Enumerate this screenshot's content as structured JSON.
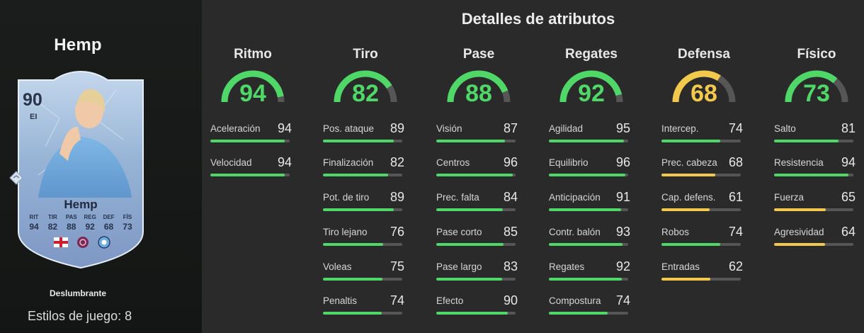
{
  "player": {
    "name": "Hemp",
    "card": {
      "rating": "90",
      "position": "EI",
      "name": "Hemp",
      "stats": [
        {
          "label": "RIT",
          "value": "94"
        },
        {
          "label": "TIR",
          "value": "82"
        },
        {
          "label": "PAS",
          "value": "88"
        },
        {
          "label": "REG",
          "value": "92"
        },
        {
          "label": "DEF",
          "value": "68"
        },
        {
          "label": "FÍS",
          "value": "73"
        }
      ],
      "badges": [
        "england-flag-icon",
        "league-badge-icon",
        "club-crest-icon"
      ]
    },
    "playstyle": "Deslumbrante",
    "playstyles_text": "Estilos de juego: 8"
  },
  "heading": "Detalles de atributos",
  "colors": {
    "green": "#4fd868",
    "yellow": "#f2c94c",
    "track": "#565656"
  },
  "categories": [
    {
      "title": "Ritmo",
      "value": 94,
      "attributes": [
        {
          "name": "Aceleración",
          "value": 94
        },
        {
          "name": "Velocidad",
          "value": 94
        }
      ]
    },
    {
      "title": "Tiro",
      "value": 82,
      "attributes": [
        {
          "name": "Pos. ataque",
          "value": 89
        },
        {
          "name": "Finalización",
          "value": 82
        },
        {
          "name": "Pot. de tiro",
          "value": 89
        },
        {
          "name": "Tiro lejano",
          "value": 76
        },
        {
          "name": "Voleas",
          "value": 75
        },
        {
          "name": "Penaltis",
          "value": 74
        }
      ]
    },
    {
      "title": "Pase",
      "value": 88,
      "attributes": [
        {
          "name": "Visión",
          "value": 87
        },
        {
          "name": "Centros",
          "value": 96
        },
        {
          "name": "Prec. falta",
          "value": 84
        },
        {
          "name": "Pase corto",
          "value": 85
        },
        {
          "name": "Pase largo",
          "value": 83
        },
        {
          "name": "Efecto",
          "value": 90
        }
      ]
    },
    {
      "title": "Regates",
      "value": 92,
      "attributes": [
        {
          "name": "Agilidad",
          "value": 95
        },
        {
          "name": "Equilibrio",
          "value": 96
        },
        {
          "name": "Anticipación",
          "value": 91
        },
        {
          "name": "Contr. balón",
          "value": 93
        },
        {
          "name": "Regates",
          "value": 92
        },
        {
          "name": "Compostura",
          "value": 74
        }
      ]
    },
    {
      "title": "Defensa",
      "value": 68,
      "attributes": [
        {
          "name": "Intercep.",
          "value": 74
        },
        {
          "name": "Prec. cabeza",
          "value": 68
        },
        {
          "name": "Cap. defens.",
          "value": 61
        },
        {
          "name": "Robos",
          "value": 74
        },
        {
          "name": "Entradas",
          "value": 62
        }
      ]
    },
    {
      "title": "Físico",
      "value": 73,
      "attributes": [
        {
          "name": "Salto",
          "value": 81
        },
        {
          "name": "Resistencia",
          "value": 94
        },
        {
          "name": "Fuerza",
          "value": 65
        },
        {
          "name": "Agresividad",
          "value": 64
        }
      ]
    }
  ]
}
